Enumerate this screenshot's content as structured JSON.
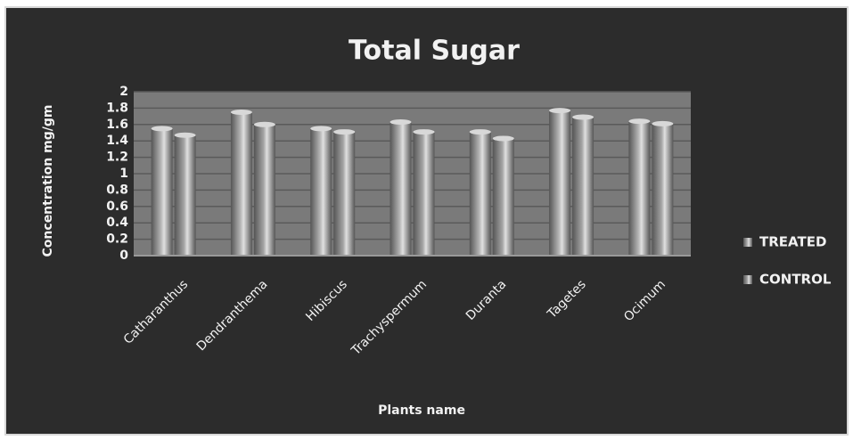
{
  "chart_data": {
    "type": "bar",
    "title": "Total Sugar",
    "x_label": "Plants name",
    "y_label": "Concentration mg/gm",
    "categories": [
      "Catharanthus",
      "Dendranthema",
      "Hibiscus",
      "Trachyspermum",
      "Duranta",
      "Tagetes",
      "Ocimum"
    ],
    "series": [
      {
        "name": "TREATED",
        "color": "#b4b4b4",
        "values": [
          1.55,
          1.75,
          1.55,
          1.63,
          1.51,
          1.77,
          1.64
        ]
      },
      {
        "name": "CONTROL",
        "color": "#a4a4a4",
        "values": [
          1.47,
          1.6,
          1.51,
          1.51,
          1.43,
          1.69,
          1.61
        ]
      }
    ],
    "ylim": [
      0,
      2
    ],
    "yticks": [
      0,
      0.2,
      0.4,
      0.6,
      0.8,
      1,
      1.2,
      1.4,
      1.6,
      1.8,
      2
    ],
    "grid": true,
    "legend": "right"
  }
}
